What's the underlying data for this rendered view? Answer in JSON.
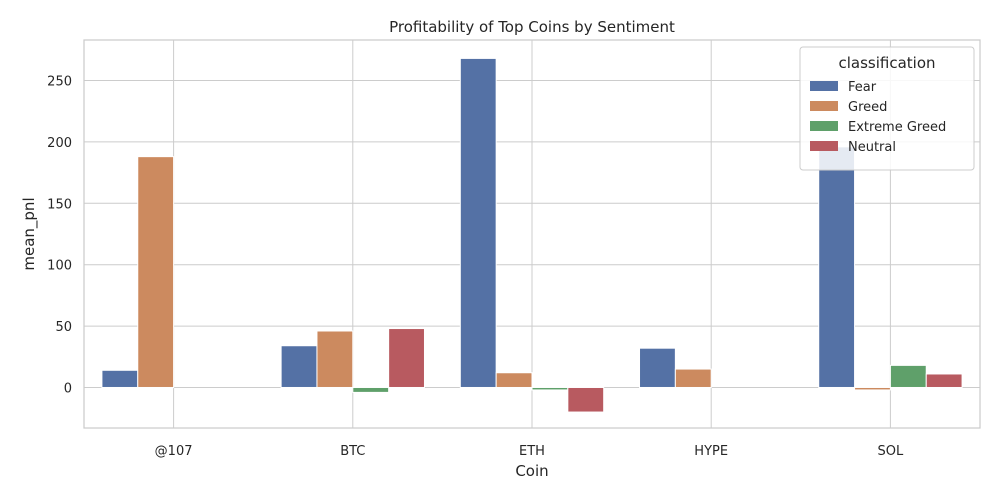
{
  "chart_data": {
    "type": "bar",
    "title": "Profitability of Top Coins by Sentiment",
    "xlabel": "Coin",
    "ylabel": "mean_pnl",
    "categories": [
      "@107",
      "BTC",
      "ETH",
      "HYPE",
      "SOL"
    ],
    "ylim": [
      -33,
      283
    ],
    "yticks": [
      0,
      50,
      100,
      150,
      200,
      250
    ],
    "grid": true,
    "legend": {
      "title": "classification",
      "placement": "top-right"
    },
    "series": [
      {
        "name": "Fear",
        "color": "#5471a5",
        "values": [
          14,
          34,
          268,
          32,
          196
        ]
      },
      {
        "name": "Greed",
        "color": "#cc8a5f",
        "values": [
          188,
          46,
          12,
          15,
          -2
        ]
      },
      {
        "name": "Extreme Greed",
        "color": "#5fa06a",
        "values": [
          null,
          -4,
          -2,
          null,
          18
        ]
      },
      {
        "name": "Neutral",
        "color": "#b85a60",
        "values": [
          null,
          48,
          -20,
          null,
          11
        ]
      }
    ]
  }
}
